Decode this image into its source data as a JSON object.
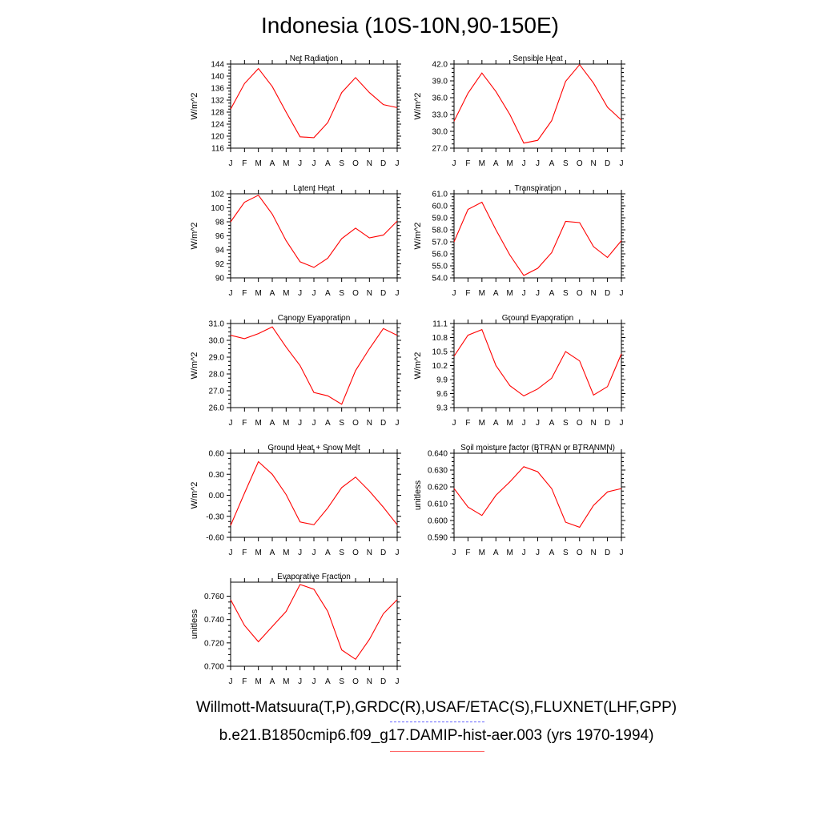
{
  "title": "Indonesia (10S-10N,90-150E)",
  "legend": {
    "observations": "Willmott-Matsuura(T,P),GRDC(R),USAF/ETAC(S),FLUXNET(LHF,GPP)",
    "model": "b.e21.B1850cmip6.f09_g17.DAMIP-hist-aer.003 (yrs 1970-1994)",
    "observations_color": "#6666ff",
    "model_color": "#ff0000"
  },
  "chart_data": [
    {
      "type": "line",
      "title": "Net Radiation",
      "ylabel": "W/m^2",
      "x": [
        "J",
        "F",
        "M",
        "A",
        "M",
        "J",
        "J",
        "A",
        "S",
        "O",
        "N",
        "D",
        "J"
      ],
      "ylim": [
        116,
        144
      ],
      "yticks": [
        "116",
        "120",
        "124",
        "128",
        "132",
        "136",
        "140",
        "144"
      ],
      "series": [
        {
          "values": [
            129.0,
            137.5,
            142.5,
            136.5,
            128.0,
            119.8,
            119.5,
            124.5,
            134.5,
            139.5,
            134.5,
            130.5,
            129.5
          ]
        }
      ]
    },
    {
      "type": "line",
      "title": "Sensible Heat",
      "ylabel": "W/m^2",
      "x": [
        "J",
        "F",
        "M",
        "A",
        "M",
        "J",
        "J",
        "A",
        "S",
        "O",
        "N",
        "D",
        "J"
      ],
      "ylim": [
        27.0,
        42.0
      ],
      "yticks": [
        "27.0",
        "30.0",
        "33.0",
        "36.0",
        "39.0",
        "42.0"
      ],
      "series": [
        {
          "values": [
            31.8,
            36.8,
            40.4,
            37.1,
            33.0,
            27.9,
            28.4,
            31.9,
            38.9,
            41.9,
            38.6,
            34.3,
            32.0
          ]
        }
      ]
    },
    {
      "type": "line",
      "title": "Latent Heat",
      "ylabel": "W/m^2",
      "x": [
        "J",
        "F",
        "M",
        "A",
        "M",
        "J",
        "J",
        "A",
        "S",
        "O",
        "N",
        "D",
        "J"
      ],
      "ylim": [
        90,
        102
      ],
      "yticks": [
        "90",
        "92",
        "94",
        "96",
        "98",
        "100",
        "102"
      ],
      "series": [
        {
          "values": [
            98.0,
            100.8,
            101.8,
            99.1,
            95.3,
            92.3,
            91.5,
            92.8,
            95.6,
            97.1,
            95.7,
            96.1,
            98.1
          ]
        }
      ]
    },
    {
      "type": "line",
      "title": "Transpiration",
      "ylabel": "W/m^2",
      "x": [
        "J",
        "F",
        "M",
        "A",
        "M",
        "J",
        "J",
        "A",
        "S",
        "O",
        "N",
        "D",
        "J"
      ],
      "ylim": [
        54.0,
        61.0
      ],
      "yticks": [
        "54.0",
        "55.0",
        "56.0",
        "57.0",
        "58.0",
        "59.0",
        "60.0",
        "61.0"
      ],
      "series": [
        {
          "values": [
            57.0,
            59.7,
            60.3,
            58.0,
            55.9,
            54.2,
            54.8,
            56.1,
            58.7,
            58.6,
            56.6,
            55.7,
            57.1
          ]
        }
      ]
    },
    {
      "type": "line",
      "title": "Canopy Evaporation",
      "ylabel": "W/m^2",
      "x": [
        "J",
        "F",
        "M",
        "A",
        "M",
        "J",
        "J",
        "A",
        "S",
        "O",
        "N",
        "D",
        "J"
      ],
      "ylim": [
        26.0,
        31.0
      ],
      "yticks": [
        "26.0",
        "27.0",
        "28.0",
        "29.0",
        "30.0",
        "31.0"
      ],
      "series": [
        {
          "values": [
            30.3,
            30.1,
            30.4,
            30.8,
            29.6,
            28.5,
            26.9,
            26.7,
            26.2,
            28.2,
            29.5,
            30.7,
            30.3
          ]
        }
      ]
    },
    {
      "type": "line",
      "title": "Ground Evaporation",
      "ylabel": "W/m^2",
      "x": [
        "J",
        "F",
        "M",
        "A",
        "M",
        "J",
        "J",
        "A",
        "S",
        "O",
        "N",
        "D",
        "J"
      ],
      "ylim": [
        9.3,
        11.1
      ],
      "yticks": [
        "9.3",
        "9.6",
        "9.9",
        "10.2",
        "10.5",
        "10.8",
        "11.1"
      ],
      "series": [
        {
          "values": [
            10.4,
            10.85,
            10.97,
            10.2,
            9.77,
            9.55,
            9.7,
            9.93,
            10.5,
            10.3,
            9.57,
            9.75,
            10.45
          ]
        }
      ]
    },
    {
      "type": "line",
      "title": "Ground Heat + Snow Melt",
      "ylabel": "W/m^2",
      "x": [
        "J",
        "F",
        "M",
        "A",
        "M",
        "J",
        "J",
        "A",
        "S",
        "O",
        "N",
        "D",
        "J"
      ],
      "ylim": [
        -0.6,
        0.6
      ],
      "yticks": [
        "-0.60",
        "-0.30",
        "0.00",
        "0.30",
        "0.60"
      ],
      "series": [
        {
          "values": [
            -0.43,
            0.03,
            0.48,
            0.3,
            0.01,
            -0.38,
            -0.42,
            -0.18,
            0.11,
            0.26,
            0.06,
            -0.17,
            -0.42
          ]
        }
      ]
    },
    {
      "type": "line",
      "title": "Soil moisture factor (BTRAN or BTRANMN)",
      "ylabel": "unitless",
      "x": [
        "J",
        "F",
        "M",
        "A",
        "M",
        "J",
        "J",
        "A",
        "S",
        "O",
        "N",
        "D",
        "J"
      ],
      "ylim": [
        0.59,
        0.64
      ],
      "yticks": [
        "0.590",
        "0.600",
        "0.610",
        "0.620",
        "0.630",
        "0.640"
      ],
      "series": [
        {
          "values": [
            0.619,
            0.608,
            0.603,
            0.615,
            0.623,
            0.632,
            0.629,
            0.619,
            0.599,
            0.596,
            0.609,
            0.617,
            0.619
          ]
        }
      ]
    },
    {
      "type": "line",
      "title": "Evaporative Fraction",
      "ylabel": "unitless",
      "x": [
        "J",
        "F",
        "M",
        "A",
        "M",
        "J",
        "J",
        "A",
        "S",
        "O",
        "N",
        "D",
        "J"
      ],
      "ylim": [
        0.7,
        0.772
      ],
      "yticks": [
        "0.700",
        "0.720",
        "0.740",
        "0.760"
      ],
      "series": [
        {
          "values": [
            0.757,
            0.735,
            0.721,
            0.734,
            0.747,
            0.77,
            0.766,
            0.747,
            0.714,
            0.706,
            0.723,
            0.745,
            0.757
          ]
        }
      ]
    }
  ]
}
